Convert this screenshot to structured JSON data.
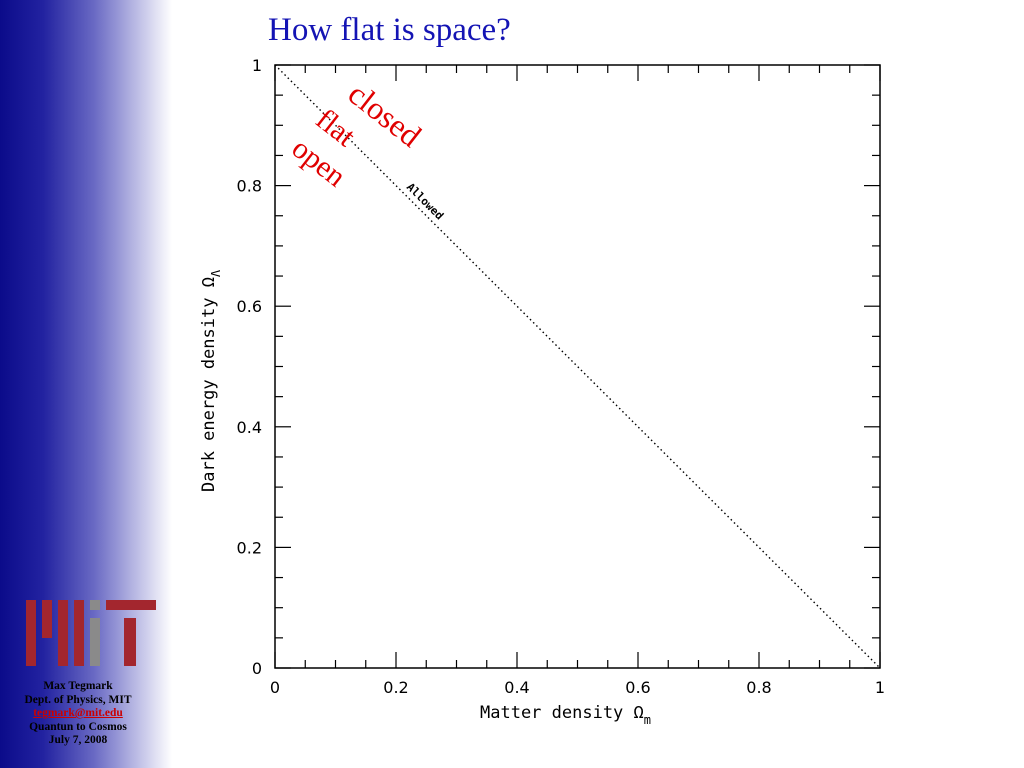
{
  "slide": {
    "title": "How flat is space?",
    "accent_color": "#1414b4",
    "annotation_color": "#e00000"
  },
  "sidebar": {
    "logo_icon": "mit-logo-icon",
    "credits": {
      "name": "Max Tegmark",
      "dept": "Dept. of Physics, MIT",
      "email": "tegmark@mit.edu",
      "talk": "Quantun to Cosmos",
      "date": "July 7, 2008"
    }
  },
  "annotations": {
    "closed": "closed",
    "flat": "flat",
    "open": "open"
  },
  "chart_data": {
    "type": "line",
    "xlabel": "Matter density Ω",
    "xlabel_sub": "m",
    "ylabel": "Dark energy density Ω",
    "ylabel_sub": "Λ",
    "xlim": [
      0,
      1
    ],
    "ylim": [
      0,
      1
    ],
    "xticks": [
      "0",
      "0.2",
      "0.4",
      "0.6",
      "0.8",
      "1"
    ],
    "yticks": [
      "0",
      "0.2",
      "0.4",
      "0.6",
      "0.8",
      "1"
    ],
    "grid": false,
    "series": [
      {
        "label": "Allowed",
        "style": "dotted",
        "x": [
          0,
          1
        ],
        "y": [
          1,
          0
        ]
      }
    ]
  }
}
